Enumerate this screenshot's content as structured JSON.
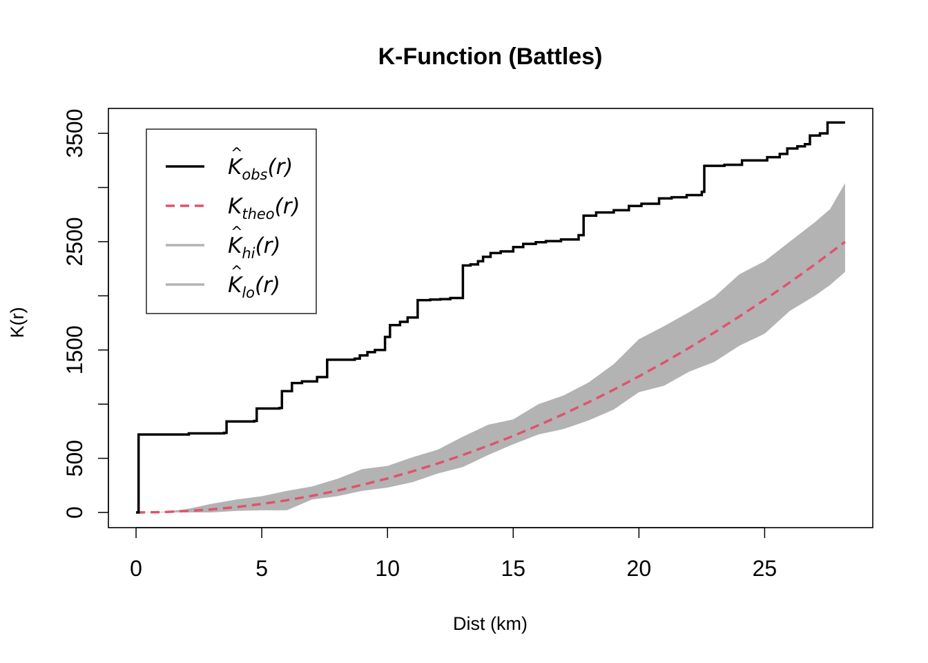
{
  "chart_data": {
    "type": "line",
    "title": "K-Function (Battles)",
    "xlabel": "Dist (km)",
    "ylabel": "K(r)",
    "xlim": [
      -1.1,
      29.3
    ],
    "ylim": [
      -140,
      3730
    ],
    "x_ticks": [
      "0",
      "5",
      "10",
      "15",
      "20",
      "25"
    ],
    "y_ticks": [
      "0",
      "500",
      "1500",
      "2500",
      "3500"
    ],
    "y_minor_ticks": [
      1000,
      2000,
      3000
    ],
    "legend_position": "top-left",
    "legend": [
      {
        "base": "K",
        "hat": "^",
        "sub": "obs",
        "suffix": "(r)",
        "color": "#000000",
        "style": "solid"
      },
      {
        "base": "K",
        "hat": "",
        "sub": "theo",
        "suffix": "(r)",
        "color": "#DF536B",
        "style": "dashed"
      },
      {
        "base": "K",
        "hat": "^",
        "sub": "hi",
        "suffix": "(r)",
        "color": "#B3B3B3",
        "style": "solid"
      },
      {
        "base": "K",
        "hat": "^",
        "sub": "lo",
        "suffix": "(r)",
        "color": "#B3B3B3",
        "style": "solid"
      }
    ],
    "series": [
      {
        "name": "obs",
        "color": "#000000",
        "step": true,
        "x": [
          0,
          0.1,
          2.1,
          3.5,
          3.6,
          4.7,
          4.8,
          5.7,
          5.8,
          6.2,
          6.6,
          7.2,
          7.6,
          8.7,
          8.9,
          9.2,
          9.5,
          9.9,
          10.1,
          10.5,
          10.8,
          11.2,
          11.7,
          12.1,
          12.5,
          13.0,
          13.3,
          13.6,
          13.8,
          14.1,
          14.5,
          15.0,
          15.4,
          15.9,
          16.3,
          16.9,
          17.6,
          17.8,
          18.3,
          19.0,
          19.6,
          20.1,
          20.8,
          21.3,
          21.9,
          22.5,
          22.6,
          23.4,
          24.1,
          25.1,
          25.6,
          25.9,
          26.3,
          26.6,
          26.8,
          27.2,
          27.5,
          28.2
        ],
        "y": [
          0,
          720,
          730,
          735,
          840,
          845,
          960,
          965,
          1120,
          1195,
          1210,
          1250,
          1410,
          1420,
          1450,
          1480,
          1500,
          1620,
          1730,
          1760,
          1800,
          1960,
          1965,
          1970,
          1980,
          2280,
          2290,
          2320,
          2360,
          2395,
          2410,
          2450,
          2480,
          2495,
          2505,
          2520,
          2560,
          2740,
          2770,
          2790,
          2830,
          2850,
          2900,
          2910,
          2930,
          2960,
          3200,
          3210,
          3250,
          3280,
          3310,
          3360,
          3380,
          3400,
          3480,
          3500,
          3600,
          3600
        ]
      },
      {
        "name": "theo",
        "color": "#DF536B",
        "x": [
          0,
          1,
          2,
          3,
          4,
          5,
          6,
          7,
          8,
          9,
          10,
          11,
          12,
          13,
          14,
          15,
          16,
          17,
          18,
          19,
          20,
          21,
          22,
          23,
          24,
          25,
          26,
          27,
          28.2
        ],
        "y": [
          0,
          3,
          13,
          28,
          50,
          79,
          113,
          154,
          201,
          255,
          314,
          380,
          452,
          531,
          616,
          707,
          804,
          908,
          1018,
          1134,
          1257,
          1385,
          1520,
          1662,
          1810,
          1963,
          2124,
          2290,
          2498
        ]
      },
      {
        "name": "hi",
        "color": "#B3B3B3",
        "x": [
          0,
          1,
          2,
          3,
          4,
          5,
          6,
          7,
          8,
          9,
          10,
          11,
          12,
          13,
          14,
          15,
          16,
          17,
          18,
          19,
          20,
          21,
          22,
          23,
          24,
          25,
          26,
          27,
          27.6,
          28.2
        ],
        "y": [
          0,
          5,
          30,
          80,
          120,
          150,
          200,
          240,
          310,
          400,
          430,
          510,
          580,
          700,
          810,
          860,
          1000,
          1080,
          1200,
          1370,
          1600,
          1720,
          1850,
          1990,
          2200,
          2320,
          2500,
          2680,
          2800,
          3040
        ]
      },
      {
        "name": "lo",
        "color": "#B3B3B3",
        "x": [
          0,
          1,
          2,
          3,
          4,
          5,
          6,
          7,
          8,
          9,
          10,
          11,
          12,
          13,
          14,
          15,
          16,
          17,
          18,
          19,
          20,
          21,
          22,
          23,
          24,
          25,
          26,
          27,
          27.6,
          28.2
        ],
        "y": [
          0,
          0,
          0,
          0,
          15,
          20,
          20,
          120,
          150,
          200,
          230,
          280,
          360,
          420,
          530,
          630,
          720,
          770,
          850,
          950,
          1110,
          1170,
          1300,
          1390,
          1540,
          1650,
          1860,
          2000,
          2100,
          2220
        ]
      }
    ]
  }
}
